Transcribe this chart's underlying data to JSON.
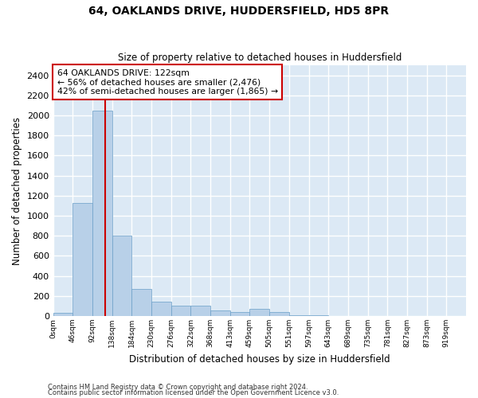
{
  "title": "64, OAKLANDS DRIVE, HUDDERSFIELD, HD5 8PR",
  "subtitle": "Size of property relative to detached houses in Huddersfield",
  "xlabel": "Distribution of detached houses by size in Huddersfield",
  "ylabel": "Number of detached properties",
  "footnote1": "Contains HM Land Registry data © Crown copyright and database right 2024.",
  "footnote2": "Contains public sector information licensed under the Open Government Licence v3.0.",
  "bin_labels": [
    "0sqm",
    "46sqm",
    "92sqm",
    "138sqm",
    "184sqm",
    "230sqm",
    "276sqm",
    "322sqm",
    "368sqm",
    "413sqm",
    "459sqm",
    "505sqm",
    "551sqm",
    "597sqm",
    "643sqm",
    "689sqm",
    "735sqm",
    "781sqm",
    "827sqm",
    "873sqm",
    "919sqm"
  ],
  "bar_values": [
    30,
    1130,
    2050,
    800,
    270,
    140,
    100,
    100,
    55,
    40,
    75,
    40,
    8,
    5,
    4,
    4,
    3,
    3,
    2,
    2,
    2
  ],
  "bar_color": "#b8d0e8",
  "bar_edge_color": "#6a9fc8",
  "property_size": 122,
  "property_label": "64 OAKLANDS DRIVE: 122sqm",
  "annotation_line1": "← 56% of detached houses are smaller (2,476)",
  "annotation_line2": "42% of semi-detached houses are larger (1,865) →",
  "vline_color": "#cc0000",
  "annotation_box_facecolor": "#ffffff",
  "annotation_box_edgecolor": "#cc0000",
  "ylim": [
    0,
    2500
  ],
  "yticks": [
    0,
    200,
    400,
    600,
    800,
    1000,
    1200,
    1400,
    1600,
    1800,
    2000,
    2200,
    2400
  ],
  "background_color": "#dce9f5",
  "fig_background_color": "#ffffff",
  "grid_color": "#ffffff",
  "bin_width": 46
}
